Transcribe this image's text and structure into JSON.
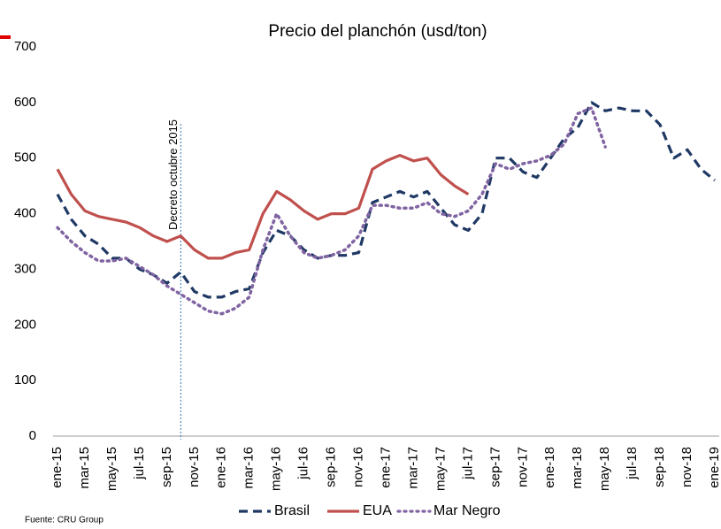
{
  "chart_data": {
    "type": "line",
    "title": "Precio del planchón (usd/ton)",
    "source": "Fuente: CRU Group",
    "annotation": {
      "text": "Decreto octubre 2015",
      "category": 9
    },
    "categories": [
      "ene-15",
      null,
      "mar-15",
      null,
      "may-15",
      null,
      "jul-15",
      null,
      "sep-15",
      null,
      "nov-15",
      null,
      "ene-16",
      null,
      "mar-16",
      null,
      "may-16",
      null,
      "jul-16",
      null,
      "sep-16",
      null,
      "nov-16",
      null,
      "ene-17",
      null,
      "mar-17",
      null,
      "may-17",
      null,
      "jul-17",
      null,
      "sep-17",
      null,
      "nov-17",
      null,
      "ene-18",
      null,
      "mar-18",
      null,
      "may-18",
      null,
      "jul-18",
      null,
      "sep-18",
      null,
      "nov-18",
      null,
      "ene-19"
    ],
    "ylim": [
      0,
      700
    ],
    "yticks": [
      0,
      100,
      200,
      300,
      400,
      500,
      600,
      700
    ],
    "grid": false,
    "legend": "bottom",
    "series": [
      {
        "name": "Brasil",
        "color": "#1f3864",
        "dash": "dashed",
        "values": [
          435,
          390,
          360,
          345,
          320,
          320,
          300,
          290,
          275,
          295,
          260,
          250,
          250,
          260,
          265,
          330,
          370,
          360,
          335,
          320,
          325,
          325,
          330,
          420,
          430,
          440,
          430,
          440,
          410,
          380,
          370,
          400,
          500,
          500,
          475,
          465,
          500,
          535,
          555,
          600,
          585,
          590,
          585,
          585,
          560,
          500,
          515,
          480,
          460
        ]
      },
      {
        "name": "EUA",
        "color": "#c0504d",
        "dash": "solid",
        "values": [
          480,
          435,
          405,
          395,
          390,
          385,
          375,
          360,
          350,
          360,
          335,
          320,
          320,
          330,
          335,
          400,
          440,
          425,
          405,
          390,
          400,
          400,
          410,
          480,
          495,
          505,
          495,
          500,
          470,
          450,
          435,
          null,
          null,
          null,
          null,
          null,
          null,
          null,
          null,
          null,
          null,
          null,
          null,
          null,
          null,
          null,
          null,
          null,
          null
        ]
      },
      {
        "name": "Mar Negro",
        "color": "#8064a2",
        "dash": "dotted",
        "values": [
          375,
          350,
          330,
          315,
          315,
          320,
          305,
          290,
          270,
          255,
          240,
          225,
          220,
          230,
          250,
          335,
          400,
          360,
          330,
          320,
          325,
          335,
          360,
          415,
          415,
          410,
          410,
          420,
          400,
          395,
          405,
          435,
          490,
          480,
          490,
          495,
          505,
          525,
          580,
          590,
          520,
          null,
          null,
          null,
          null,
          null,
          null,
          null,
          null
        ]
      }
    ]
  }
}
